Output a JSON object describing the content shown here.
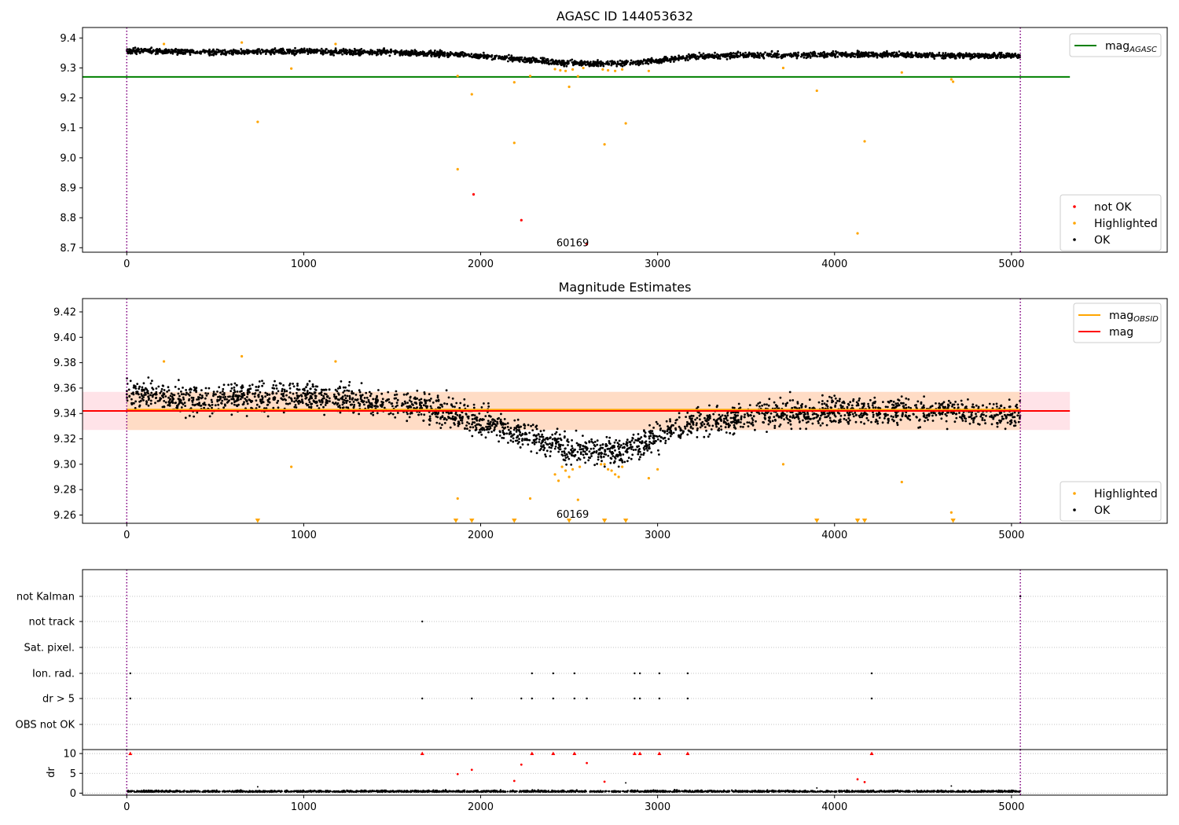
{
  "chart_data": [
    {
      "type": "scatter",
      "title": "AGASC ID 144053632",
      "xlim": [
        -250,
        5880
      ],
      "ylim": [
        8.685,
        9.435
      ],
      "xticks": [
        "0",
        "1000",
        "2000",
        "3000",
        "4000",
        "5000"
      ],
      "yticks": [
        "8.7",
        "8.8",
        "8.9",
        "9.0",
        "9.1",
        "9.2",
        "9.3",
        "9.4"
      ],
      "vlines": [
        0,
        5050
      ],
      "hlines": [
        {
          "name": "mag",
          "subscript": "AGASC",
          "value": 9.27,
          "x": [
            -250,
            5330
          ],
          "color": "#008000"
        }
      ],
      "annotations": [
        {
          "text": "60169",
          "x": 2520,
          "y": 8.71
        }
      ],
      "legend_lines": [
        {
          "name": "mag",
          "subscript": "AGASC",
          "color": "#008000"
        }
      ],
      "legend_markers": [
        {
          "name": "not OK",
          "color": "#ff0000"
        },
        {
          "name": "Highlighted",
          "color": "#ffa500"
        },
        {
          "name": "OK",
          "color": "#000000"
        }
      ],
      "ok_trend": [
        [
          0,
          9.358
        ],
        [
          500,
          9.352
        ],
        [
          1000,
          9.355
        ],
        [
          1500,
          9.352
        ],
        [
          1900,
          9.345
        ],
        [
          2100,
          9.335
        ],
        [
          2300,
          9.325
        ],
        [
          2500,
          9.315
        ],
        [
          2800,
          9.315
        ],
        [
          3000,
          9.325
        ],
        [
          3200,
          9.338
        ],
        [
          3500,
          9.342
        ],
        [
          4000,
          9.345
        ],
        [
          4300,
          9.345
        ],
        [
          4600,
          9.342
        ],
        [
          5050,
          9.34
        ]
      ],
      "ok_scatter_width": 0.009,
      "highlighted_points": [
        [
          210,
          9.38
        ],
        [
          650,
          9.385
        ],
        [
          740,
          9.12
        ],
        [
          930,
          9.298
        ],
        [
          1180,
          9.38
        ],
        [
          1870,
          9.273
        ],
        [
          1870,
          8.962
        ],
        [
          1950,
          9.212
        ],
        [
          2190,
          9.05
        ],
        [
          2190,
          9.252
        ],
        [
          2280,
          9.273
        ],
        [
          2420,
          9.296
        ],
        [
          2450,
          9.292
        ],
        [
          2480,
          9.29
        ],
        [
          2500,
          9.237
        ],
        [
          2520,
          9.295
        ],
        [
          2550,
          9.272
        ],
        [
          2580,
          9.3
        ],
        [
          2690,
          9.295
        ],
        [
          2700,
          9.045
        ],
        [
          2720,
          9.292
        ],
        [
          2760,
          9.29
        ],
        [
          2800,
          9.295
        ],
        [
          2820,
          9.115
        ],
        [
          2950,
          9.29
        ],
        [
          3710,
          9.3
        ],
        [
          3900,
          9.224
        ],
        [
          4130,
          8.748
        ],
        [
          4170,
          9.055
        ],
        [
          4380,
          9.285
        ],
        [
          4660,
          9.262
        ],
        [
          4670,
          9.254
        ]
      ],
      "not_ok_points": [
        [
          1960,
          8.878
        ],
        [
          2230,
          8.792
        ],
        [
          2600,
          8.712
        ]
      ]
    },
    {
      "type": "scatter",
      "title": "Magnitude Estimates",
      "xlim": [
        -250,
        5880
      ],
      "ylim": [
        9.2535,
        9.4305
      ],
      "xticks": [
        "0",
        "1000",
        "2000",
        "3000",
        "4000",
        "5000"
      ],
      "yticks": [
        "9.26",
        "9.28",
        "9.30",
        "9.32",
        "9.34",
        "9.36",
        "9.38",
        "9.40",
        "9.42"
      ],
      "vlines": [
        0,
        5050
      ],
      "bands": [
        {
          "x": [
            -250,
            5330
          ],
          "y": [
            9.327,
            9.357
          ],
          "color": "#ffc0cb"
        },
        {
          "x": [
            0,
            5050
          ],
          "y": [
            9.327,
            9.357
          ],
          "color": "#ffdab9"
        }
      ],
      "hlines": [
        {
          "name": "mag",
          "subscript": "OBSID",
          "value": 9.343,
          "x": [
            0,
            5050
          ],
          "color": "#ffa500"
        },
        {
          "name": "mag",
          "value": 9.342,
          "x": [
            -250,
            5330
          ],
          "color": "#ff0000"
        }
      ],
      "annotations": [
        {
          "text": "60169",
          "x": 2520,
          "y": 9.259
        }
      ],
      "legend_lines": [
        {
          "name": "mag",
          "subscript": "OBSID",
          "color": "#ffa500"
        },
        {
          "name": "mag",
          "color": "#ff0000"
        }
      ],
      "legend_markers": [
        {
          "name": "Highlighted",
          "color": "#ffa500"
        },
        {
          "name": "OK",
          "color": "#000000"
        }
      ],
      "ok_trend": [
        [
          0,
          9.358
        ],
        [
          300,
          9.35
        ],
        [
          600,
          9.352
        ],
        [
          1000,
          9.354
        ],
        [
          1200,
          9.352
        ],
        [
          1500,
          9.348
        ],
        [
          1800,
          9.342
        ],
        [
          1950,
          9.336
        ],
        [
          2100,
          9.33
        ],
        [
          2300,
          9.322
        ],
        [
          2500,
          9.312
        ],
        [
          2700,
          9.31
        ],
        [
          2900,
          9.315
        ],
        [
          3000,
          9.322
        ],
        [
          3200,
          9.332
        ],
        [
          3500,
          9.338
        ],
        [
          4000,
          9.342
        ],
        [
          4500,
          9.342
        ],
        [
          5050,
          9.338
        ]
      ],
      "ok_scatter_width": 0.011,
      "highlighted_points": [
        [
          210,
          9.381
        ],
        [
          650,
          9.385
        ],
        [
          930,
          9.298
        ],
        [
          1180,
          9.381
        ],
        [
          1870,
          9.273
        ],
        [
          2280,
          9.273
        ],
        [
          2420,
          9.292
        ],
        [
          2440,
          9.287
        ],
        [
          2460,
          9.298
        ],
        [
          2480,
          9.295
        ],
        [
          2500,
          9.29
        ],
        [
          2520,
          9.296
        ],
        [
          2550,
          9.272
        ],
        [
          2560,
          9.298
        ],
        [
          2680,
          9.3
        ],
        [
          2700,
          9.3
        ],
        [
          2720,
          9.296
        ],
        [
          2740,
          9.295
        ],
        [
          2760,
          9.292
        ],
        [
          2780,
          9.29
        ],
        [
          2800,
          9.298
        ],
        [
          2950,
          9.289
        ],
        [
          3000,
          9.296
        ],
        [
          3710,
          9.3
        ],
        [
          4380,
          9.286
        ],
        [
          4660,
          9.262
        ]
      ],
      "clipped_low_markers": [
        740,
        1860,
        1950,
        2190,
        2500,
        2700,
        2820,
        3900,
        4130,
        4170,
        4670
      ]
    },
    {
      "type": "scatter",
      "title": "",
      "xlim": [
        -250,
        5880
      ],
      "xticks": [
        "0",
        "1000",
        "2000",
        "3000",
        "4000",
        "5000"
      ],
      "vlines": [
        0,
        5050
      ],
      "flag_categories": [
        "not Kalman",
        "not track",
        "Sat. pixel.",
        "Ion. rad.",
        "dr > 5",
        "OBS not OK"
      ],
      "flag_points": {
        "not Kalman": [
          5050
        ],
        "not track": [
          1670
        ],
        "Sat. pixel.": [],
        "Ion. rad.": [
          20,
          2290,
          2410,
          2530,
          2870,
          2900,
          3010,
          3170,
          4210
        ],
        "dr > 5": [
          20,
          1670,
          1950,
          2230,
          2290,
          2410,
          2530,
          2600,
          2870,
          2900,
          3010,
          3170,
          4210
        ],
        "OBS not OK": []
      },
      "dr": {
        "ylabel": "dr",
        "ylim": [
          -0.5,
          11
        ],
        "yticks": [
          "0",
          "5",
          "10"
        ],
        "max_marked": 10,
        "clipped_points": [
          20,
          1670,
          2290,
          2410,
          2530,
          2870,
          2900,
          3010,
          3170,
          4210
        ],
        "red_points": [
          [
            1870,
            4.8
          ],
          [
            1950,
            5.9
          ],
          [
            2190,
            3.1
          ],
          [
            2230,
            7.2
          ],
          [
            2600,
            7.6
          ],
          [
            2700,
            2.9
          ],
          [
            4130,
            3.5
          ],
          [
            4170,
            2.8
          ]
        ],
        "small_black_points": [
          [
            740,
            1.6
          ],
          [
            2820,
            2.6
          ],
          [
            3900,
            1.3
          ],
          [
            4660,
            1.8
          ]
        ],
        "baseline": 0.3
      }
    }
  ]
}
